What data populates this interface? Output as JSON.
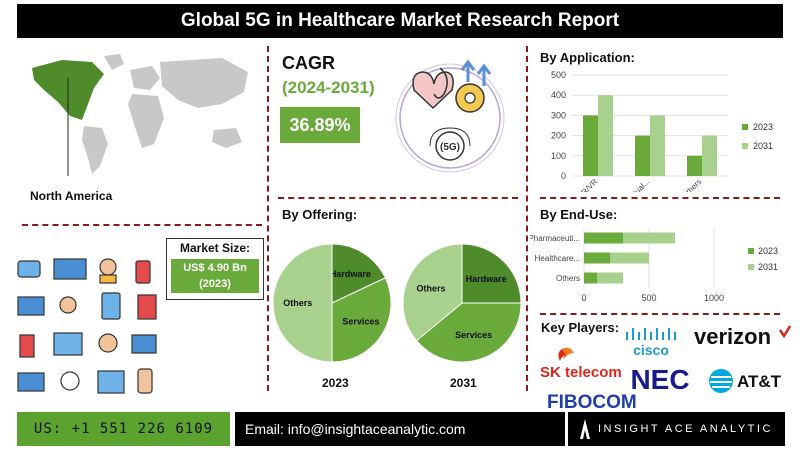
{
  "title": "Global 5G in Healthcare Market Research Report",
  "region": {
    "label": "North America"
  },
  "cagr": {
    "label": "CAGR",
    "period": "(2024-2031)",
    "value": "36.89%"
  },
  "market_size": {
    "label": "Market Size:",
    "value": "US$ 4.90 Bn",
    "year": "(2023)"
  },
  "offering": {
    "heading": "By Offering:",
    "year_2023": "2023",
    "year_2031": "2031"
  },
  "application": {
    "heading": "By Application:"
  },
  "end_use": {
    "heading": "By End-Use:"
  },
  "key_players": {
    "heading": "Key Players:",
    "logos": [
      "cisco",
      "verizon",
      "SK telecom",
      "NEC",
      "AT&T",
      "FIBOCOM"
    ]
  },
  "footer": {
    "phone": "US: +1 551 226 6109",
    "email": "Email: info@insightaceanalytic.com",
    "brand": "INSIGHT ACE ANALYTIC"
  },
  "colors": {
    "dark_green": "#4f8a2b",
    "mid_green": "#6aaa3a",
    "light_green": "#a9d18e",
    "divider": "#8b1a1a"
  },
  "chart_data": [
    {
      "type": "bar",
      "title": "By Application:",
      "categories": [
        "AR/VR",
        "Virtual...",
        "Others"
      ],
      "series": [
        {
          "name": "2023",
          "values": [
            300,
            200,
            100
          ]
        },
        {
          "name": "2031",
          "values": [
            400,
            300,
            200
          ]
        }
      ],
      "ylim": [
        0,
        500
      ],
      "yticks": [
        0,
        100,
        200,
        300,
        400,
        500
      ],
      "legend": "right"
    },
    {
      "type": "bar",
      "orientation": "horizontal",
      "stacked": true,
      "title": "By End-Use:",
      "categories": [
        "Pharmaceuti...",
        "Healthcare...",
        "Others"
      ],
      "series": [
        {
          "name": "2023",
          "values": [
            300,
            200,
            100
          ]
        },
        {
          "name": "2031",
          "values": [
            400,
            300,
            200
          ]
        }
      ],
      "xlim": [
        0,
        1000
      ],
      "xticks": [
        0,
        500,
        1000
      ],
      "legend": "right"
    },
    {
      "type": "pie",
      "title": "2023",
      "labels": [
        "Hardware",
        "Services",
        "Others"
      ],
      "values": [
        18,
        32,
        50
      ]
    },
    {
      "type": "pie",
      "title": "2031",
      "labels": [
        "Hardware",
        "Services",
        "Others"
      ],
      "values": [
        25,
        39,
        36
      ]
    }
  ]
}
